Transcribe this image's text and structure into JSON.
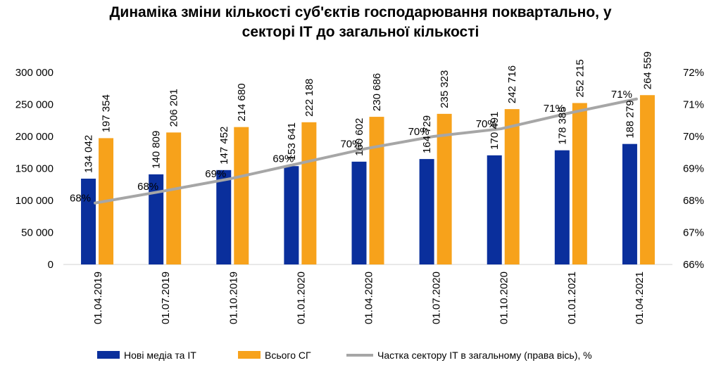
{
  "chart_data": {
    "type": "bar",
    "title_lines": [
      "Динаміка зміни кількості суб'єктів господарювання поквартально, у",
      "секторі IT до загальної кількості"
    ],
    "categories": [
      "01.04.2019",
      "01.07.2019",
      "01.10.2019",
      "01.01.2020",
      "01.04.2020",
      "01.07.2020",
      "01.10.2020",
      "01.01.2021",
      "01.04.2021"
    ],
    "series": [
      {
        "name": "Нові медіа та IT",
        "type": "bar",
        "axis": "left",
        "color": "#0a2f9c",
        "values": [
          134042,
          140809,
          147452,
          153641,
          160602,
          164729,
          170491,
          178385,
          188279
        ],
        "labels": [
          "134 042",
          "140 809",
          "147 452",
          "153 641",
          "160 602",
          "164 729",
          "170 491",
          "178 385",
          "188 279"
        ]
      },
      {
        "name": "Всього СГ",
        "type": "bar",
        "axis": "left",
        "color": "#f7a21b",
        "values": [
          197354,
          206201,
          214680,
          222188,
          230686,
          235323,
          242716,
          252215,
          264559
        ],
        "labels": [
          "197 354",
          "206 201",
          "214 680",
          "222 188",
          "230 686",
          "235 323",
          "242 716",
          "252 215",
          "264 559"
        ]
      },
      {
        "name": "Частка сектору IT в загальному (права вісь), %",
        "type": "line",
        "axis": "right",
        "color": "#a6a6a6",
        "values": [
          67.92,
          68.29,
          68.68,
          69.15,
          69.62,
          70.0,
          70.24,
          70.73,
          71.17
        ],
        "labels": [
          "68%",
          "68%",
          "69%",
          "69%",
          "70%",
          "70%",
          "70%",
          "71%",
          "71%"
        ]
      }
    ],
    "y_left": {
      "min": 0,
      "max": 300000,
      "ticks": [
        0,
        50000,
        100000,
        150000,
        200000,
        250000,
        300000
      ],
      "tick_labels": [
        "0",
        "50 000",
        "100 000",
        "150 000",
        "200 000",
        "250 000",
        "300 000"
      ]
    },
    "y_right": {
      "min": 66,
      "max": 72,
      "ticks": [
        66,
        67,
        68,
        69,
        70,
        71,
        72
      ],
      "tick_labels": [
        "66%",
        "67%",
        "68%",
        "69%",
        "70%",
        "71%",
        "72%"
      ]
    },
    "grid": false,
    "legend_position": "bottom"
  }
}
